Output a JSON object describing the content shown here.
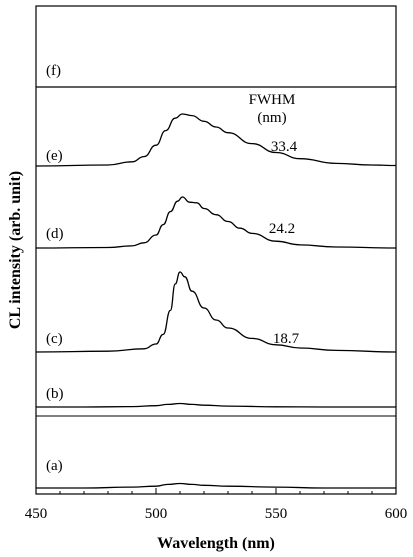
{
  "chart_data": {
    "type": "line",
    "title": "",
    "xlabel": "Wavelength (nm)",
    "ylabel": "CL intensity (arb. unit)",
    "xlim": [
      450,
      600
    ],
    "x_ticks": [
      "450",
      "500",
      "550",
      "600"
    ],
    "grid": false,
    "fwhm_header": [
      "FWHM",
      "(nm)"
    ],
    "series": [
      {
        "name": "(a)",
        "fwhm": "",
        "peak_nm": 510,
        "x": [
          450,
          470,
          490,
          500,
          505,
          510,
          515,
          520,
          530,
          550,
          570,
          600
        ],
        "y": [
          0.0,
          0.0,
          0.01,
          0.02,
          0.04,
          0.05,
          0.04,
          0.03,
          0.02,
          0.01,
          0.0,
          0.0
        ]
      },
      {
        "name": "(b)",
        "fwhm": "",
        "peak_nm": 510,
        "x": [
          450,
          470,
          490,
          500,
          505,
          510,
          515,
          520,
          530,
          550,
          570,
          600
        ],
        "y": [
          0.0,
          0.0,
          0.02,
          0.06,
          0.12,
          0.16,
          0.12,
          0.08,
          0.04,
          0.01,
          0.0,
          0.0
        ]
      },
      {
        "name": "(c)",
        "fwhm": "18.7",
        "peak_nm": 510,
        "x": [
          450,
          480,
          495,
          500,
          503,
          506,
          508,
          510,
          512,
          515,
          520,
          525,
          530,
          540,
          550,
          560,
          575,
          600
        ],
        "y": [
          0.0,
          0.01,
          0.04,
          0.1,
          0.22,
          0.52,
          0.85,
          1.0,
          0.94,
          0.76,
          0.55,
          0.4,
          0.3,
          0.17,
          0.09,
          0.05,
          0.02,
          0.0
        ]
      },
      {
        "name": "(d)",
        "fwhm": "24.2",
        "peak_nm": 511,
        "x": [
          450,
          480,
          490,
          495,
          500,
          503,
          506,
          509,
          511,
          514,
          517,
          520,
          525,
          530,
          535,
          540,
          550,
          560,
          575,
          600
        ],
        "y": [
          0.0,
          0.01,
          0.04,
          0.1,
          0.25,
          0.45,
          0.7,
          0.9,
          0.98,
          0.88,
          0.87,
          0.76,
          0.64,
          0.51,
          0.38,
          0.28,
          0.13,
          0.06,
          0.02,
          0.0
        ]
      },
      {
        "name": "(e)",
        "fwhm": "33.4",
        "peak_nm": 511,
        "x": [
          450,
          480,
          490,
          495,
          500,
          504,
          508,
          511,
          515,
          520,
          525,
          530,
          540,
          550,
          560,
          575,
          590,
          600
        ],
        "y": [
          0.0,
          0.02,
          0.08,
          0.18,
          0.4,
          0.68,
          0.92,
          1.0,
          0.97,
          0.86,
          0.75,
          0.64,
          0.43,
          0.26,
          0.14,
          0.05,
          0.02,
          0.01
        ]
      },
      {
        "name": "(f)",
        "fwhm": "",
        "peak_nm": null,
        "x": [
          450,
          600
        ],
        "y": [
          0.0,
          0.0
        ]
      }
    ]
  }
}
